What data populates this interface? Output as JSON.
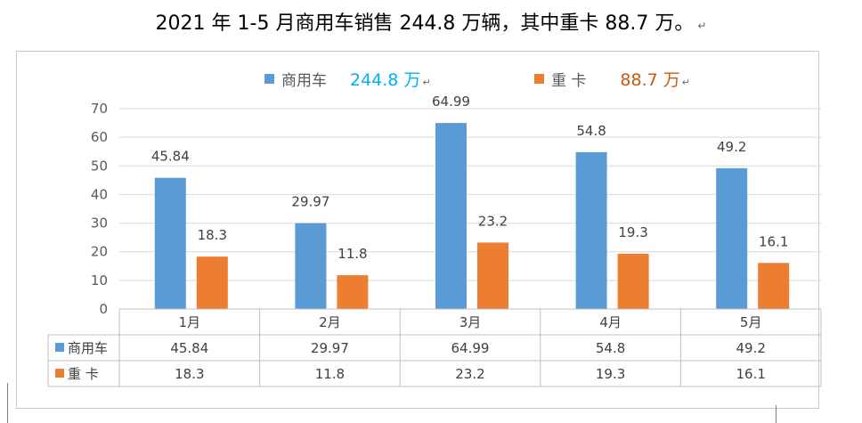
{
  "heading": {
    "text": "2021 年 1-5 月商用车销售 244.8 万辆，其中重卡 88.7 万。",
    "return_mark": "↵"
  },
  "legend": [
    {
      "name": "商用车",
      "total": "244.8 万",
      "swatch_color": "#5b9bd5",
      "total_color": "#00b0f0"
    },
    {
      "name": "重 卡",
      "total": "88.7 万",
      "swatch_color": "#ed7d31",
      "total_color": "#c55a11"
    }
  ],
  "chart_data": {
    "type": "bar",
    "categories": [
      "1月",
      "2月",
      "3月",
      "4月",
      "5月"
    ],
    "series": [
      {
        "name": "商用车",
        "values": [
          45.84,
          29.97,
          64.99,
          54.8,
          49.2
        ],
        "color": "#5b9bd5"
      },
      {
        "name": "重 卡",
        "values": [
          18.3,
          11.8,
          23.2,
          19.3,
          16.1
        ],
        "color": "#ed7d31"
      }
    ],
    "ylim": [
      0,
      70
    ],
    "yticks": [
      0,
      10,
      20,
      30,
      40,
      50,
      60,
      70
    ],
    "grid": true,
    "legend": "top",
    "data_table": true
  }
}
